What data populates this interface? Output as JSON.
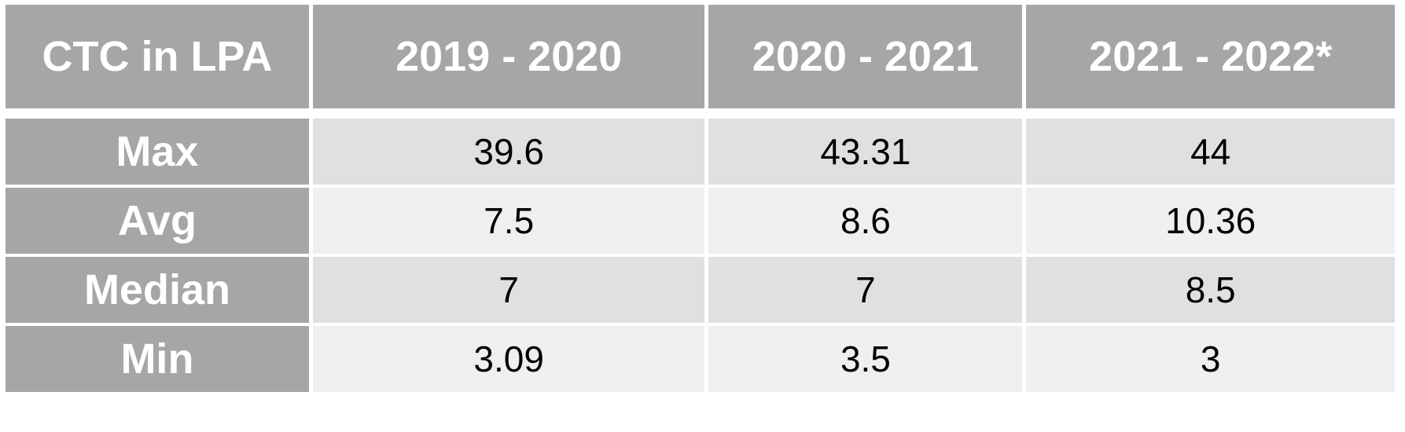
{
  "chart_data": {
    "type": "table",
    "columns": [
      "CTC in LPA",
      "2019 - 2020",
      "2020 - 2021",
      "2021 - 2022*"
    ],
    "rows": [
      {
        "label": "Max",
        "values": [
          "39.6",
          "43.31",
          "44"
        ]
      },
      {
        "label": "Avg",
        "values": [
          "7.5",
          "8.6",
          "10.36"
        ]
      },
      {
        "label": "Median",
        "values": [
          "7",
          "7",
          "8.5"
        ]
      },
      {
        "label": "Min",
        "values": [
          "3.09",
          "3.5",
          "3"
        ]
      }
    ]
  },
  "colors": {
    "header_bg": "#a6a6a6",
    "header_text": "#ffffff",
    "row_dark": "#e0e0e0",
    "row_light": "#efefef"
  }
}
